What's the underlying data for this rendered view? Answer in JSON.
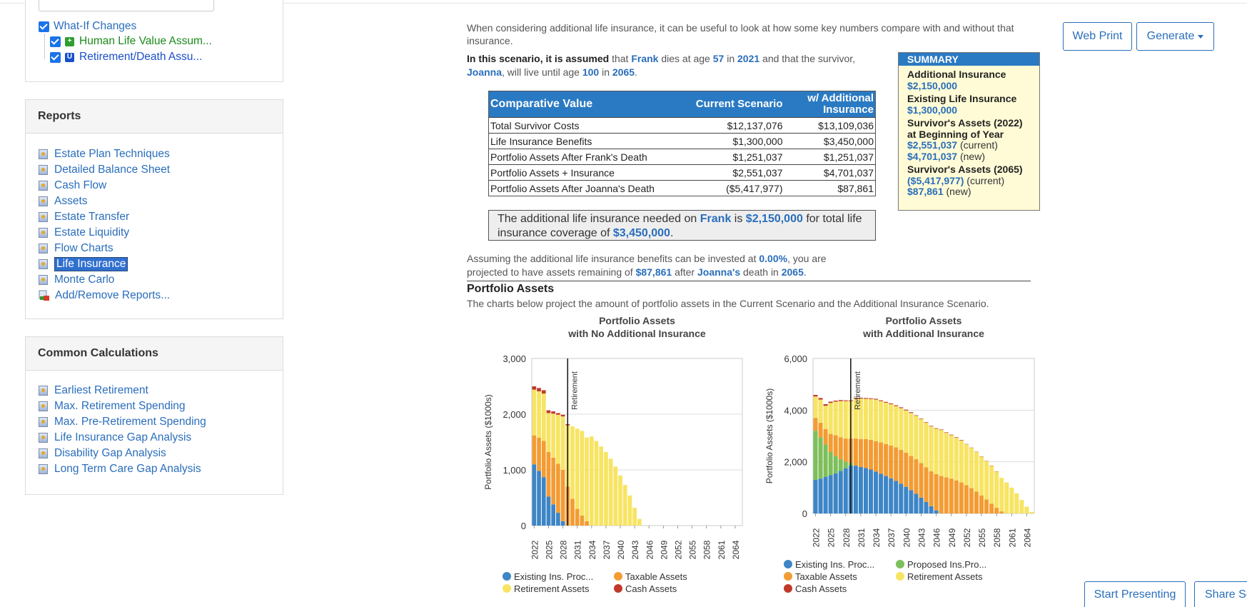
{
  "whatif": {
    "root_label": "What-If Changes",
    "items": [
      {
        "label": "Human Life Value Assum...",
        "badge": "+",
        "badge_color": "#2e9e2e"
      },
      {
        "label": "Retirement/Death Assu...",
        "badge": "U",
        "badge_color": "#1a4fc9"
      }
    ]
  },
  "reports": {
    "title": "Reports",
    "items": [
      {
        "label": "Estate Plan Techniques"
      },
      {
        "label": "Detailed Balance Sheet"
      },
      {
        "label": "Cash Flow"
      },
      {
        "label": "Assets"
      },
      {
        "label": "Estate Transfer"
      },
      {
        "label": "Estate Liquidity"
      },
      {
        "label": "Flow Charts"
      },
      {
        "label": "Life Insurance",
        "selected": true
      },
      {
        "label": "Monte Carlo"
      }
    ],
    "add_label": "Add/Remove Reports..."
  },
  "calculations": {
    "title": "Common Calculations",
    "items": [
      {
        "label": "Earliest Retirement"
      },
      {
        "label": "Max. Retirement Spending"
      },
      {
        "label": "Max. Pre-Retirement Spending"
      },
      {
        "label": "Life Insurance Gap Analysis"
      },
      {
        "label": "Disability Gap Analysis"
      },
      {
        "label": "Long Term Care Gap Analysis"
      }
    ]
  },
  "toolbar": {
    "web_print": "Web Print",
    "generate": "Generate",
    "start_presenting": "Start Presenting",
    "share": "Share Sc"
  },
  "content": {
    "intro": "When considering additional life insurance, it can be useful to look at how some key numbers compare with and without that insurance.",
    "scenario": {
      "lead": "In this scenario, it is assumed",
      "t1": " that ",
      "person": "Frank",
      "t2": " dies at age ",
      "age": "57",
      "t3": " in ",
      "year": "2021",
      "t4": " and that the survivor, ",
      "survivor": "Joanna",
      "t5": ", will live until age ",
      "survivor_age": "100",
      "t6": " in ",
      "survivor_year": "2065",
      "t7": "."
    },
    "table": {
      "headers": [
        "Comparative Value",
        "Current Scenario",
        "w/ Additional Insurance"
      ],
      "rows": [
        [
          "Total Survivor Costs",
          "$12,137,076",
          "$13,109,036"
        ],
        [
          "Life Insurance Benefits",
          "$1,300,000",
          "$3,450,000"
        ],
        [
          "Portfolio Assets After Frank's Death",
          "$1,251,037",
          "$1,251,037"
        ],
        [
          "Portfolio Assets + Insurance",
          "$2,551,037",
          "$4,701,037"
        ],
        [
          "Portfolio Assets After Joanna's Death",
          "($5,417,977)",
          "$87,861"
        ]
      ]
    },
    "callout": {
      "t1": "The additional life insurance needed on ",
      "person": "Frank",
      "t2": " is ",
      "amount": "$2,150,000",
      "t3": " for total life insurance coverage of ",
      "total": "$3,450,000",
      "t4": "."
    },
    "summary": {
      "title": "SUMMARY",
      "additional_label": "Additional Insurance",
      "additional_value": "$2,150,000",
      "existing_label": "Existing Life Insurance",
      "existing_value": "$1,300,000",
      "assets_label": "Survivor's Assets (2022) at Beginning of Year",
      "assets_current": "$2,551,037",
      "assets_current_note": " (current)",
      "assets_new": "$4,701,037",
      "assets_new_note": " (new)",
      "end_label": "Survivor's Assets (2065)",
      "end_current": "($5,417,977)",
      "end_current_note": " (current)",
      "end_new": "$87,861",
      "end_new_note": " (new)"
    },
    "assume": {
      "t1": "Assuming the additional life insurance benefits can be invested at ",
      "rate": "0.00%",
      "t2": ", you are projected to have assets remaining of ",
      "amount": "$87,861",
      "t3": " after ",
      "person": "Joanna's",
      "t4": " death in ",
      "year": "2065",
      "t5": "."
    },
    "portfolio_title": "Portfolio Assets",
    "portfolio_desc": "The charts below project the amount of portfolio assets in the Current Scenario and the Additional Insurance Scenario."
  },
  "chart_data": [
    {
      "type": "bar",
      "stacked": true,
      "title": "Portfolio Assets",
      "subtitle": "with No Additional Insurance",
      "ylabel": "Portfolio Assets ($1000s)",
      "ylim": [
        0,
        3000
      ],
      "yticks": [
        "0",
        "1,000",
        "2,000",
        "3,000"
      ],
      "grid": true,
      "x": [
        2022,
        2023,
        2024,
        2025,
        2026,
        2027,
        2028,
        2029,
        2030,
        2031,
        2032,
        2033,
        2034,
        2035,
        2036,
        2037,
        2038,
        2039,
        2040,
        2041,
        2042,
        2043,
        2044,
        2045,
        2046,
        2047,
        2048,
        2049,
        2050,
        2051,
        2052,
        2053,
        2054,
        2055,
        2056,
        2057,
        2058,
        2059,
        2060,
        2061,
        2062,
        2063,
        2064,
        2065
      ],
      "xtick_labels": [
        "2022",
        "2025",
        "2028",
        "2031",
        "2034",
        "2037",
        "2040",
        "2043",
        "2046",
        "2049",
        "2052",
        "2055",
        "2058",
        "2061",
        "2064"
      ],
      "marker": {
        "x": 2029.5,
        "label": "Retirement"
      },
      "legend": "bottom",
      "series": [
        {
          "name": "Existing Ins. Proc...",
          "color": "#3d85c6",
          "values": [
            1100,
            980,
            870,
            520,
            380,
            230,
            80,
            0,
            0,
            0,
            0,
            0,
            0,
            0,
            0,
            0,
            0,
            0,
            0,
            0,
            0,
            0,
            0,
            0,
            0,
            0,
            0,
            0,
            0,
            0,
            0,
            0,
            0,
            0,
            0,
            0,
            0,
            0,
            0,
            0,
            0,
            0,
            0,
            0
          ]
        },
        {
          "name": "Taxable Assets",
          "color": "#f39c33",
          "values": [
            520,
            600,
            650,
            800,
            840,
            880,
            920,
            700,
            480,
            300,
            180,
            80,
            0,
            0,
            0,
            0,
            0,
            0,
            0,
            0,
            0,
            0,
            0,
            0,
            0,
            0,
            0,
            0,
            0,
            0,
            0,
            0,
            0,
            0,
            0,
            0,
            0,
            0,
            0,
            0,
            0,
            0,
            0,
            0
          ]
        },
        {
          "name": "Retirement Assets",
          "color": "#f7e463",
          "values": [
            820,
            830,
            850,
            700,
            790,
            880,
            960,
            1100,
            1300,
            1440,
            1520,
            1500,
            1600,
            1520,
            1420,
            1320,
            1200,
            1060,
            900,
            730,
            540,
            320,
            120,
            0,
            0,
            0,
            0,
            0,
            0,
            0,
            0,
            0,
            0,
            0,
            0,
            0,
            0,
            0,
            0,
            0,
            0,
            0,
            0,
            0
          ]
        },
        {
          "name": "Cash Assets",
          "color": "#c0392b",
          "values": [
            60,
            60,
            60,
            50,
            40,
            30,
            30,
            20,
            0,
            0,
            0,
            0,
            0,
            0,
            0,
            0,
            0,
            0,
            0,
            0,
            0,
            0,
            0,
            0,
            0,
            0,
            0,
            0,
            0,
            0,
            0,
            0,
            0,
            0,
            0,
            0,
            0,
            0,
            0,
            0,
            0,
            0,
            0,
            0
          ]
        }
      ]
    },
    {
      "type": "bar",
      "stacked": true,
      "title": "Portfolio Assets",
      "subtitle": "with Additional Insurance",
      "ylabel": "Portfolio Assets ($1000s)",
      "ylim": [
        0,
        6000
      ],
      "yticks": [
        "0",
        "2,000",
        "4,000",
        "6,000"
      ],
      "grid": true,
      "x": [
        2022,
        2023,
        2024,
        2025,
        2026,
        2027,
        2028,
        2029,
        2030,
        2031,
        2032,
        2033,
        2034,
        2035,
        2036,
        2037,
        2038,
        2039,
        2040,
        2041,
        2042,
        2043,
        2044,
        2045,
        2046,
        2047,
        2048,
        2049,
        2050,
        2051,
        2052,
        2053,
        2054,
        2055,
        2056,
        2057,
        2058,
        2059,
        2060,
        2061,
        2062,
        2063,
        2064,
        2065
      ],
      "xtick_labels": [
        "2022",
        "2025",
        "2028",
        "2031",
        "2034",
        "2037",
        "2040",
        "2043",
        "2046",
        "2049",
        "2052",
        "2055",
        "2058",
        "2061",
        "2064"
      ],
      "marker": {
        "x": 2029.5,
        "label": "Retirement"
      },
      "legend": "bottom",
      "series": [
        {
          "name": "Existing Ins. Proc...",
          "color": "#3d85c6",
          "values": [
            1300,
            1350,
            1420,
            1480,
            1550,
            1650,
            1750,
            1850,
            1850,
            1800,
            1760,
            1700,
            1620,
            1540,
            1450,
            1360,
            1260,
            1150,
            1030,
            900,
            760,
            610,
            450,
            280,
            120,
            0,
            0,
            0,
            0,
            0,
            0,
            0,
            0,
            0,
            0,
            0,
            0,
            0,
            0,
            0,
            0,
            0,
            0,
            0
          ]
        },
        {
          "name": "Proposed Ins.Pro...",
          "color": "#7dbf5a",
          "values": [
            1900,
            1600,
            1250,
            900,
            680,
            450,
            250,
            100,
            0,
            0,
            0,
            0,
            0,
            0,
            0,
            0,
            0,
            0,
            0,
            0,
            0,
            0,
            0,
            0,
            0,
            0,
            0,
            0,
            0,
            0,
            0,
            0,
            0,
            0,
            0,
            0,
            0,
            0,
            0,
            0,
            0,
            0,
            0,
            0
          ]
        },
        {
          "name": "Taxable Assets",
          "color": "#f39c33",
          "values": [
            500,
            560,
            600,
            700,
            800,
            850,
            900,
            950,
            1050,
            1080,
            1120,
            1150,
            1180,
            1210,
            1240,
            1270,
            1300,
            1310,
            1320,
            1330,
            1340,
            1340,
            1340,
            1350,
            1400,
            1450,
            1400,
            1350,
            1280,
            1200,
            1100,
            980,
            850,
            700,
            540,
            380,
            220,
            80,
            0,
            0,
            0,
            0,
            0,
            0
          ]
        },
        {
          "name": "Retirement Assets",
          "color": "#f7e463",
          "values": [
            830,
            900,
            900,
            1200,
            1300,
            1400,
            1450,
            1450,
            1550,
            1570,
            1560,
            1580,
            1610,
            1600,
            1600,
            1600,
            1600,
            1620,
            1640,
            1660,
            1680,
            1700,
            1720,
            1740,
            1760,
            1780,
            1720,
            1680,
            1650,
            1620,
            1580,
            1560,
            1530,
            1500,
            1480,
            1460,
            1400,
            1300,
            1200,
            1000,
            780,
            520,
            260,
            60
          ]
        },
        {
          "name": "Cash Assets",
          "color": "#c0392b",
          "values": [
            60,
            60,
            60,
            50,
            40,
            40,
            30,
            30,
            30,
            30,
            30,
            30,
            30,
            30,
            30,
            30,
            30,
            30,
            30,
            30,
            20,
            20,
            20,
            20,
            20,
            20,
            20,
            20,
            20,
            20,
            10,
            10,
            10,
            10,
            10,
            10,
            10,
            0,
            0,
            0,
            0,
            0,
            0,
            0
          ]
        }
      ]
    }
  ]
}
